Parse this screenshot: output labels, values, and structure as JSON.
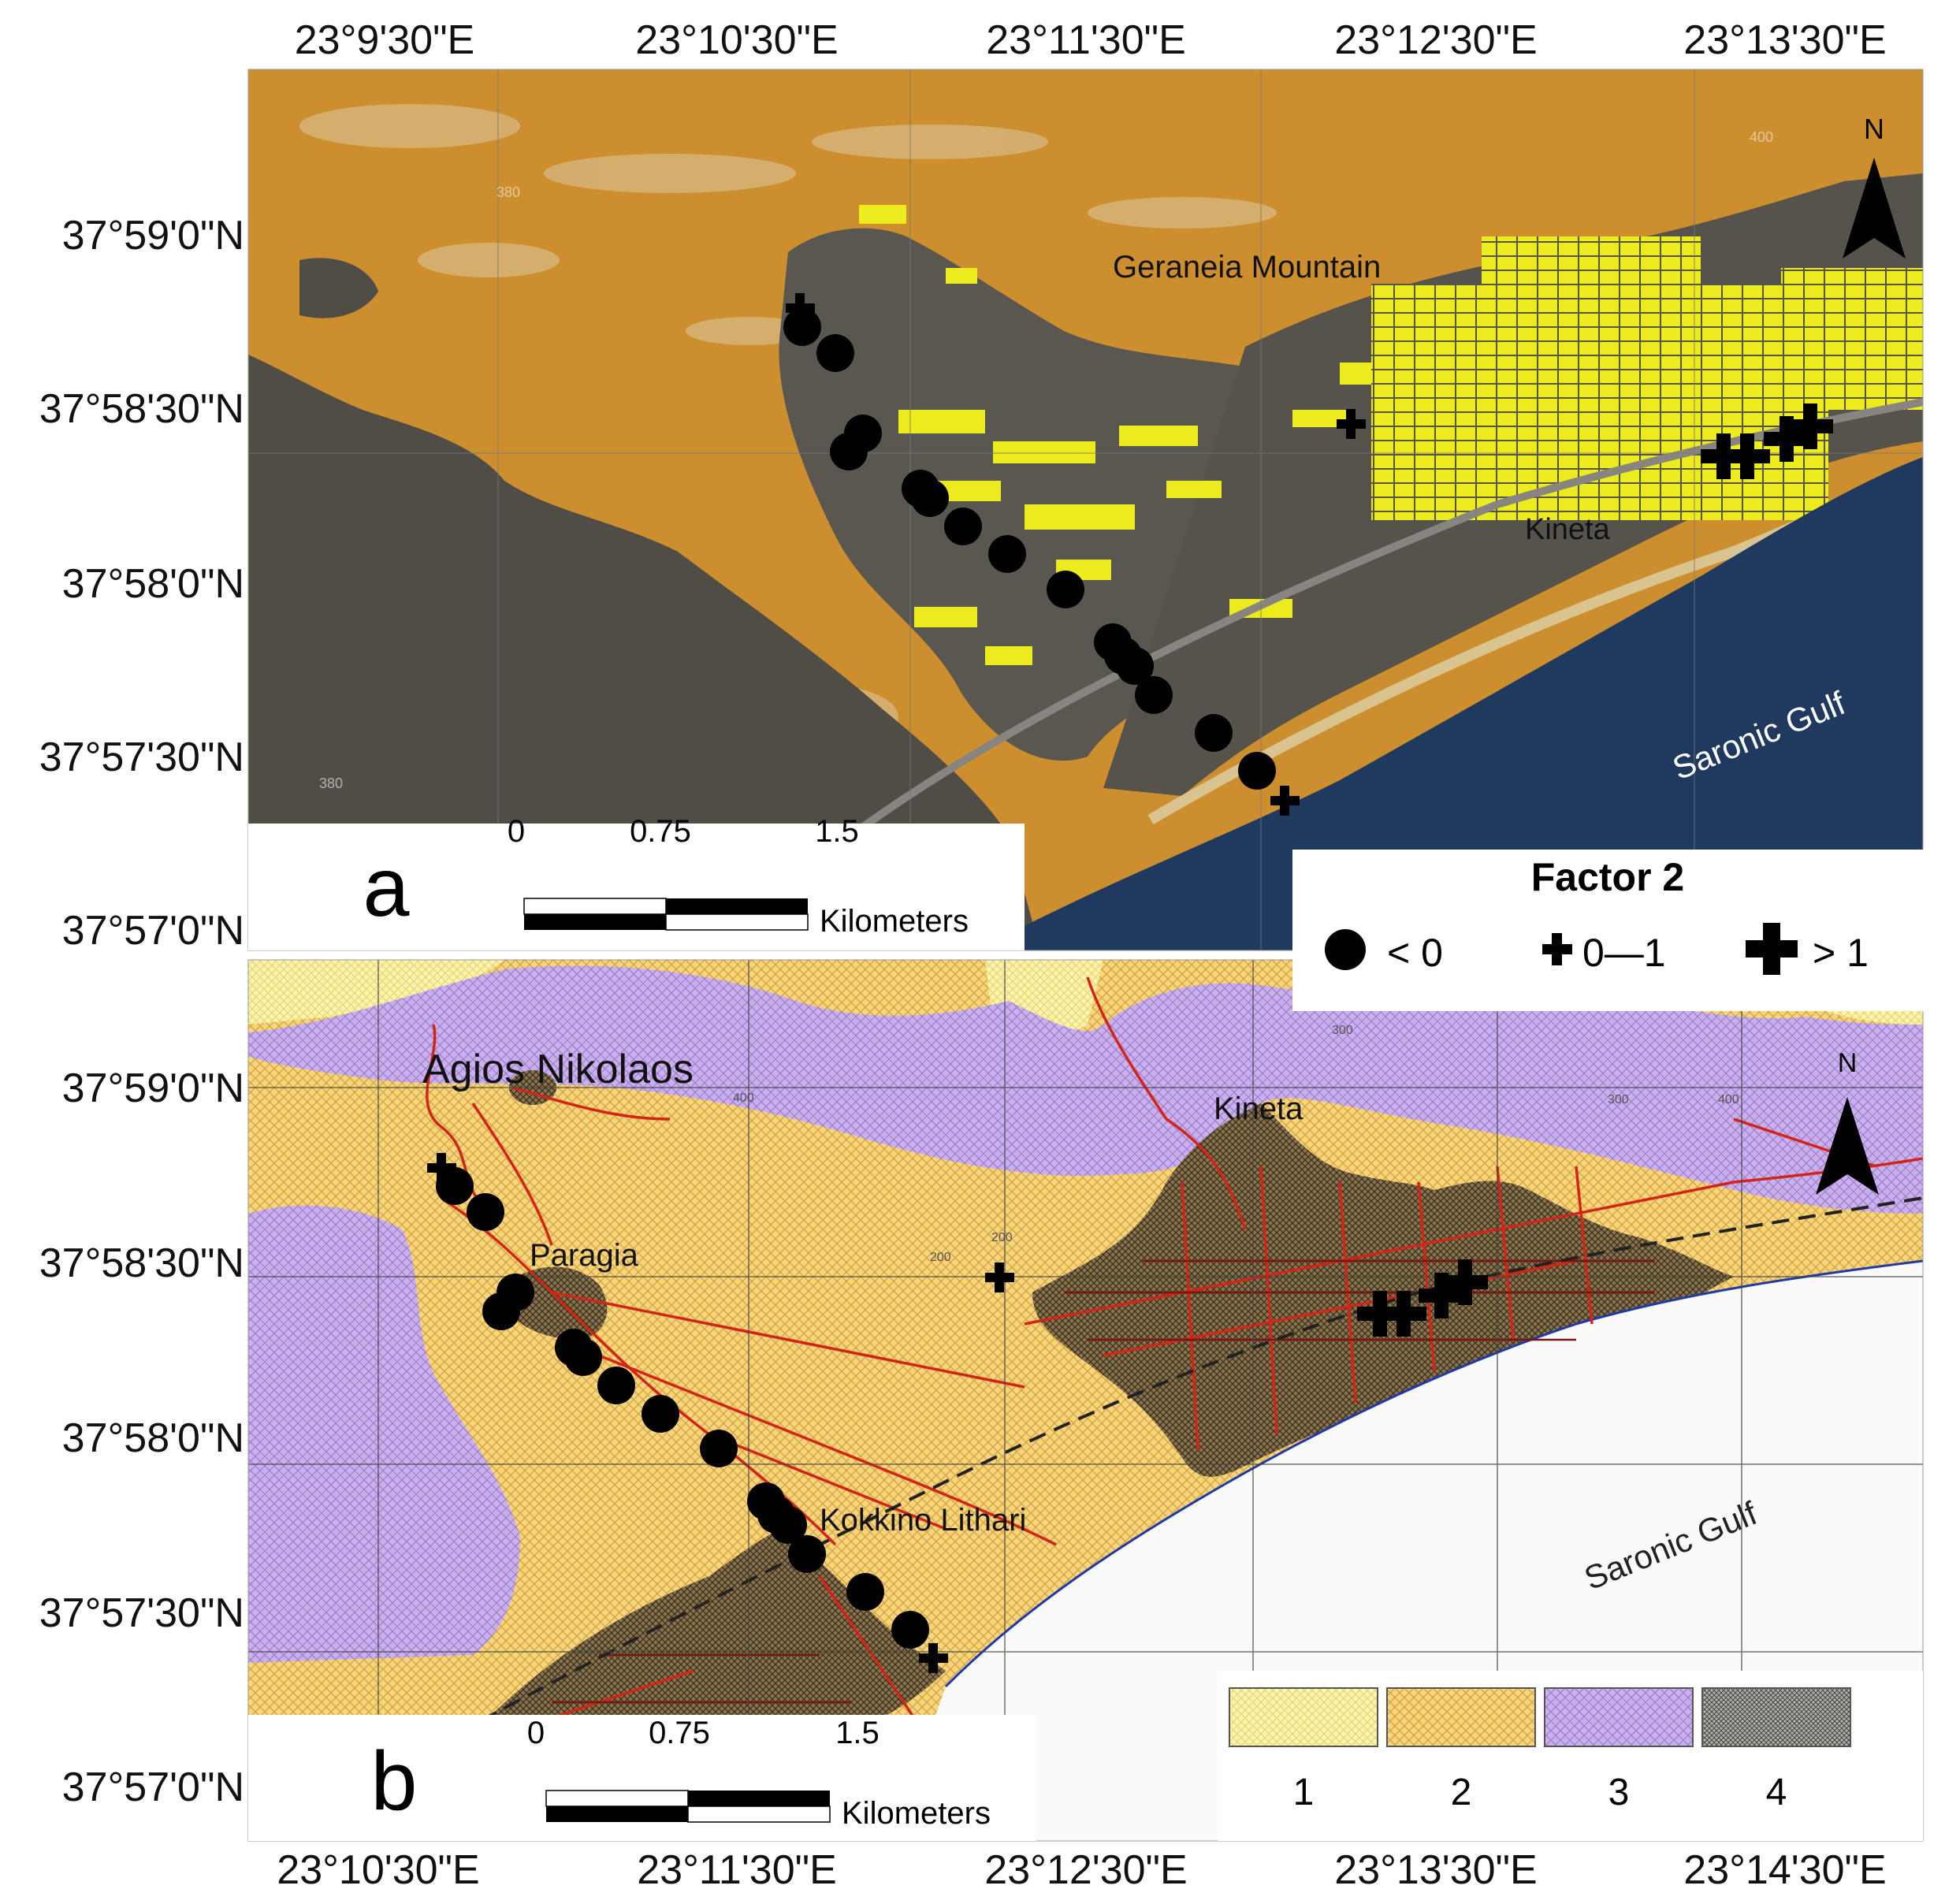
{
  "map_a": {
    "top_longitudes": [
      "23°9'30\"E",
      "23°10'30\"E",
      "23°11'30\"E",
      "23°12'30\"E",
      "23°13'30\"E"
    ],
    "left_latitudes": [
      "37°59'0\"N",
      "37°58'30\"N",
      "37°58'0\"N",
      "37°57'30\"N",
      "37°57'0\"N"
    ],
    "panel_label": "a",
    "place_labels": {
      "mountain": "Geraneia Mountain",
      "town": "Kineta",
      "sea": "Saronic Gulf"
    },
    "north": "N",
    "scale": {
      "ticks": [
        "0",
        "0.75",
        "1.5"
      ],
      "unit": "Kilometers"
    },
    "contour_labels": [
      "380",
      "400",
      "380"
    ]
  },
  "map_b": {
    "bottom_longitudes": [
      "23°10'30\"E",
      "23°11'30\"E",
      "23°12'30\"E",
      "23°13'30\"E",
      "23°14'30\"E"
    ],
    "left_latitudes": [
      "37°59'0\"N",
      "37°58'30\"N",
      "37°58'0\"N",
      "37°57'30\"N",
      "37°57'0\"N"
    ],
    "panel_label": "b",
    "place_labels": {
      "village_1": "Agios Nikolaos",
      "village_2": "Kineta",
      "village_3": "Paragia",
      "village_4": "Kokkino Lithari",
      "sea": "Saronic Gulf"
    },
    "north": "N",
    "scale": {
      "ticks": [
        "0",
        "0.75",
        "1.5"
      ],
      "unit": "Kilometers"
    },
    "legend_numbers": [
      "1",
      "2",
      "3",
      "4"
    ],
    "contour_labels": [
      "300",
      "400",
      "400",
      "300",
      "200",
      "200"
    ]
  },
  "factor_legend": {
    "title": "Factor 2",
    "items": [
      {
        "symbol": "circle",
        "label": "< 0"
      },
      {
        "symbol": "small-cross",
        "label": "0—1"
      },
      {
        "symbol": "big-cross",
        "label": "> 1"
      }
    ]
  },
  "colors": {
    "terrain_orange": "#cd8f2e",
    "satellite_gray": "#4f4d46",
    "urban_yellow": "#ecec1c",
    "sea_blue": "#1f3a5e",
    "unit1_light_yellow": "#fbf3ae",
    "unit2_yellow": "#f5d67f",
    "unit3_purple": "#cab0ec",
    "unit4_brown": "#6d5838",
    "road_red": "#d32418"
  }
}
